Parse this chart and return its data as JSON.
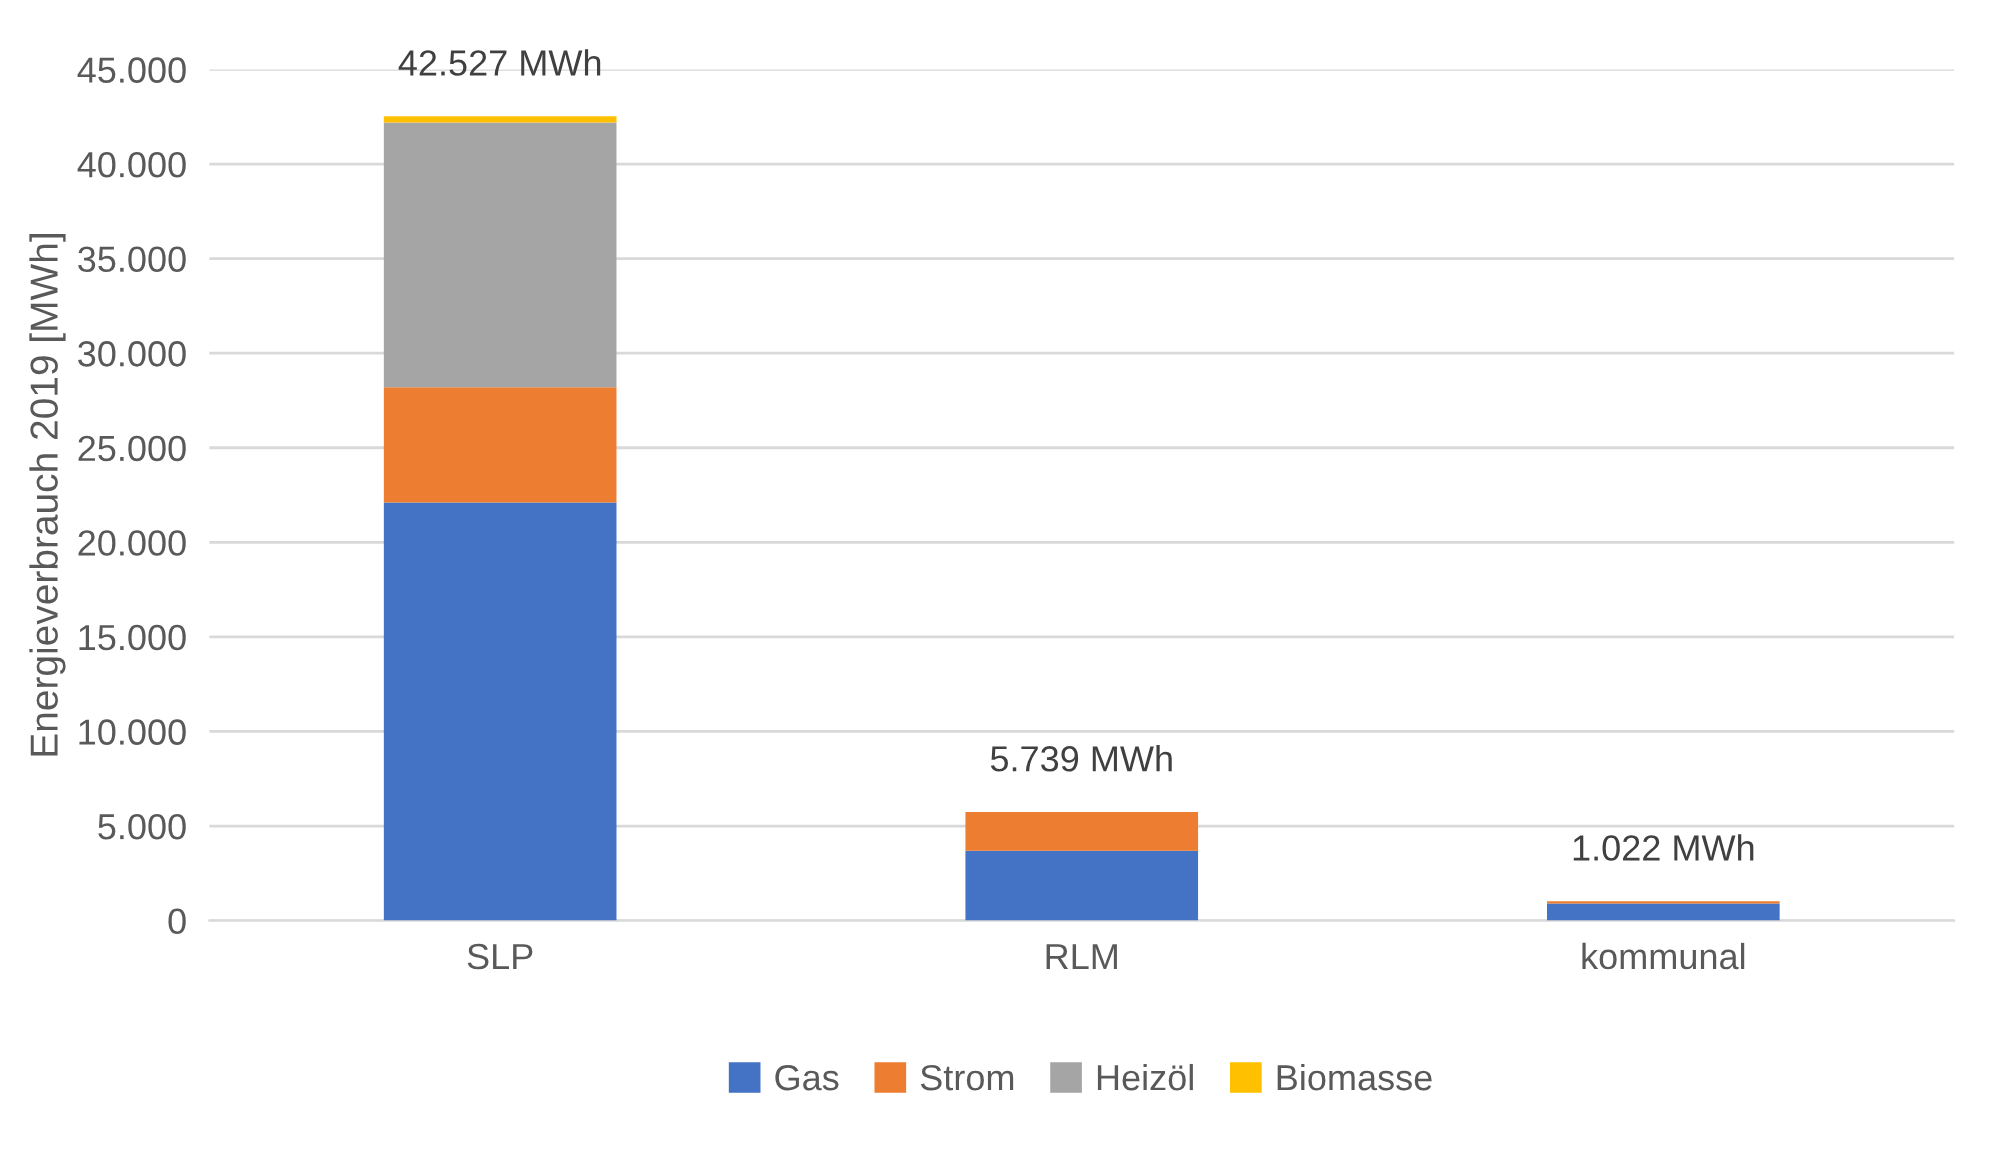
{
  "chart_data": {
    "type": "bar",
    "stacked": true,
    "ylabel": "Energieverbrauch 2019 [MWh]",
    "categories": [
      "SLP",
      "RLM",
      "kommunal"
    ],
    "series": [
      {
        "name": "Gas",
        "color": "#4472c4",
        "values": [
          22100,
          3700,
          900
        ]
      },
      {
        "name": "Strom",
        "color": "#ed7d31",
        "values": [
          6100,
          2039,
          122
        ]
      },
      {
        "name": "Heizöl",
        "color": "#a5a5a5",
        "values": [
          14000,
          0,
          0
        ]
      },
      {
        "name": "Biomasse",
        "color": "#ffc000",
        "values": [
          327,
          0,
          0
        ]
      }
    ],
    "totals": [
      "42.527 MWh",
      "5.739 MWh",
      "1.022 MWh"
    ],
    "ylim": [
      0,
      45000
    ],
    "yticks": [
      0,
      {
        "value": 5000,
        "label": "5.000"
      },
      {
        "value": 10000,
        "label": "10.000"
      },
      {
        "value": 15000,
        "label": "15.000"
      },
      {
        "value": 20000,
        "label": "20.000"
      },
      {
        "value": 25000,
        "label": "25.000"
      },
      {
        "value": 30000,
        "label": "30.000"
      },
      {
        "value": 35000,
        "label": "35.000"
      },
      {
        "value": 40000,
        "label": "40.000"
      },
      {
        "value": 45000,
        "label": "45.000"
      }
    ],
    "grid": "y",
    "legend": "bottom"
  }
}
